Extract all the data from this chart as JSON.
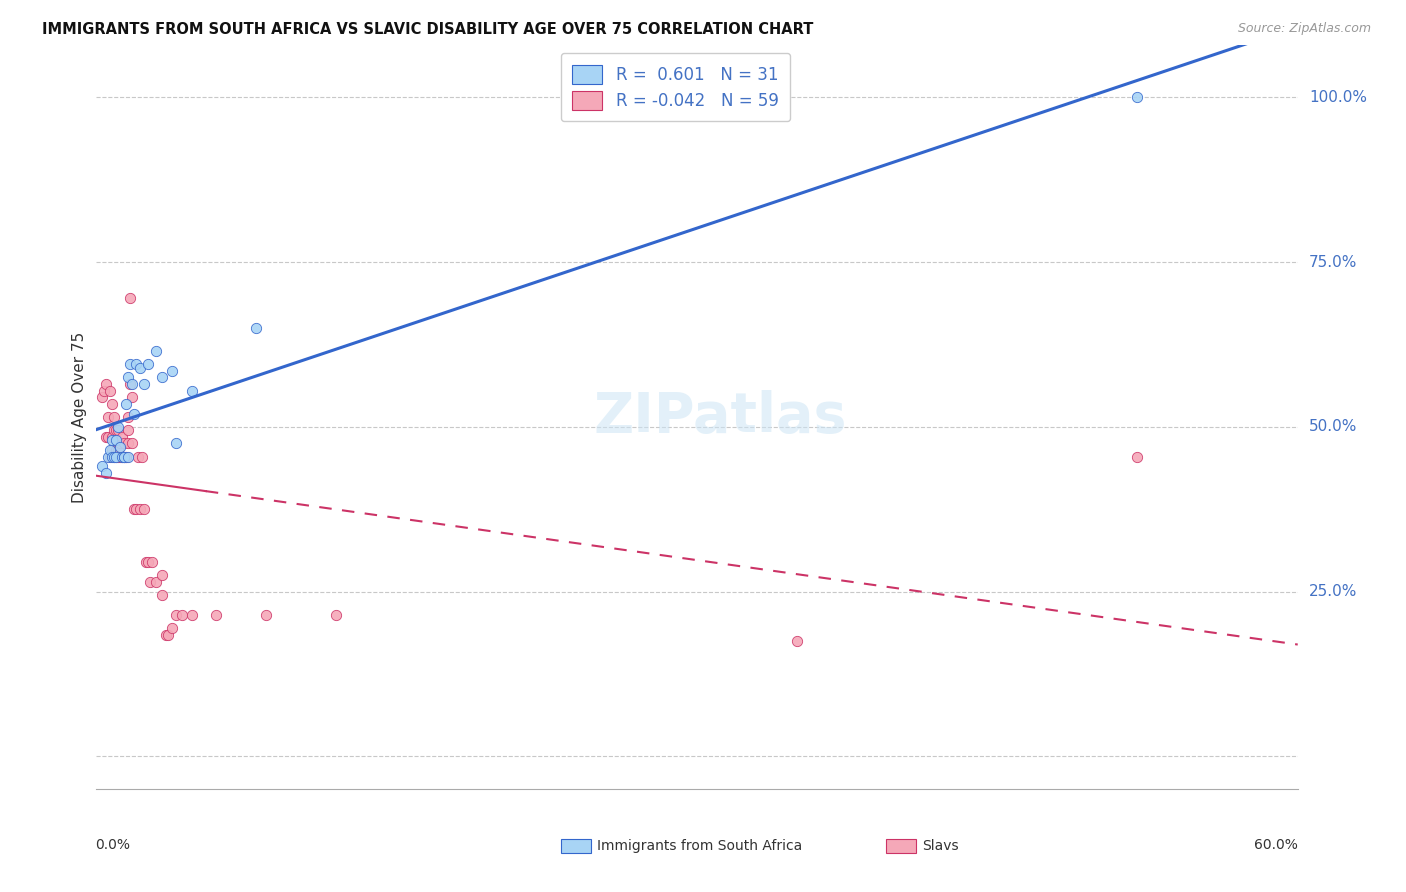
{
  "title": "IMMIGRANTS FROM SOUTH AFRICA VS SLAVIC DISABILITY AGE OVER 75 CORRELATION CHART",
  "source": "Source: ZipAtlas.com",
  "ylabel": "Disability Age Over 75",
  "xlim": [
    0.0,
    0.6
  ],
  "ylim": [
    -0.05,
    1.08
  ],
  "color_blue": "#a8d4f5",
  "color_pink": "#f5a8b8",
  "line_color_blue": "#3366cc",
  "line_color_pink": "#cc3366",
  "blue_scatter_x": [
    0.003,
    0.005,
    0.006,
    0.007,
    0.008,
    0.008,
    0.009,
    0.01,
    0.01,
    0.011,
    0.012,
    0.013,
    0.014,
    0.014,
    0.015,
    0.016,
    0.016,
    0.017,
    0.018,
    0.019,
    0.02,
    0.022,
    0.024,
    0.026,
    0.03,
    0.033,
    0.038,
    0.04,
    0.048,
    0.08,
    0.52
  ],
  "blue_scatter_y": [
    0.44,
    0.43,
    0.455,
    0.465,
    0.455,
    0.48,
    0.455,
    0.48,
    0.455,
    0.5,
    0.47,
    0.455,
    0.455,
    0.455,
    0.535,
    0.455,
    0.575,
    0.595,
    0.565,
    0.52,
    0.595,
    0.59,
    0.565,
    0.595,
    0.615,
    0.575,
    0.585,
    0.475,
    0.555,
    0.65,
    1.0
  ],
  "pink_scatter_x": [
    0.003,
    0.004,
    0.005,
    0.005,
    0.006,
    0.006,
    0.007,
    0.007,
    0.008,
    0.008,
    0.008,
    0.009,
    0.009,
    0.009,
    0.01,
    0.01,
    0.01,
    0.011,
    0.011,
    0.011,
    0.012,
    0.012,
    0.013,
    0.013,
    0.014,
    0.014,
    0.015,
    0.015,
    0.016,
    0.016,
    0.016,
    0.017,
    0.017,
    0.018,
    0.018,
    0.019,
    0.02,
    0.021,
    0.022,
    0.023,
    0.024,
    0.025,
    0.026,
    0.027,
    0.028,
    0.03,
    0.033,
    0.033,
    0.035,
    0.036,
    0.038,
    0.04,
    0.043,
    0.048,
    0.06,
    0.085,
    0.12,
    0.35,
    0.52
  ],
  "pink_scatter_y": [
    0.545,
    0.555,
    0.565,
    0.485,
    0.515,
    0.485,
    0.555,
    0.455,
    0.535,
    0.485,
    0.465,
    0.515,
    0.455,
    0.495,
    0.495,
    0.455,
    0.465,
    0.495,
    0.455,
    0.465,
    0.455,
    0.475,
    0.455,
    0.485,
    0.455,
    0.475,
    0.455,
    0.455,
    0.475,
    0.495,
    0.515,
    0.695,
    0.565,
    0.545,
    0.475,
    0.375,
    0.375,
    0.455,
    0.375,
    0.455,
    0.375,
    0.295,
    0.295,
    0.265,
    0.295,
    0.265,
    0.245,
    0.275,
    0.185,
    0.185,
    0.195,
    0.215,
    0.215,
    0.215,
    0.215,
    0.215,
    0.215,
    0.175,
    0.455
  ],
  "watermark_text": "ZIPatlas",
  "legend_label1": "R =  0.601   N = 31",
  "legend_label2": "R = -0.042   N = 59",
  "bottom_label1": "Immigrants from South Africa",
  "bottom_label2": "Slavs",
  "ytick_positions": [
    0.0,
    0.25,
    0.5,
    0.75,
    1.0
  ],
  "ytick_labels": [
    "",
    "25.0%",
    "50.0%",
    "75.0%",
    "100.0%"
  ]
}
